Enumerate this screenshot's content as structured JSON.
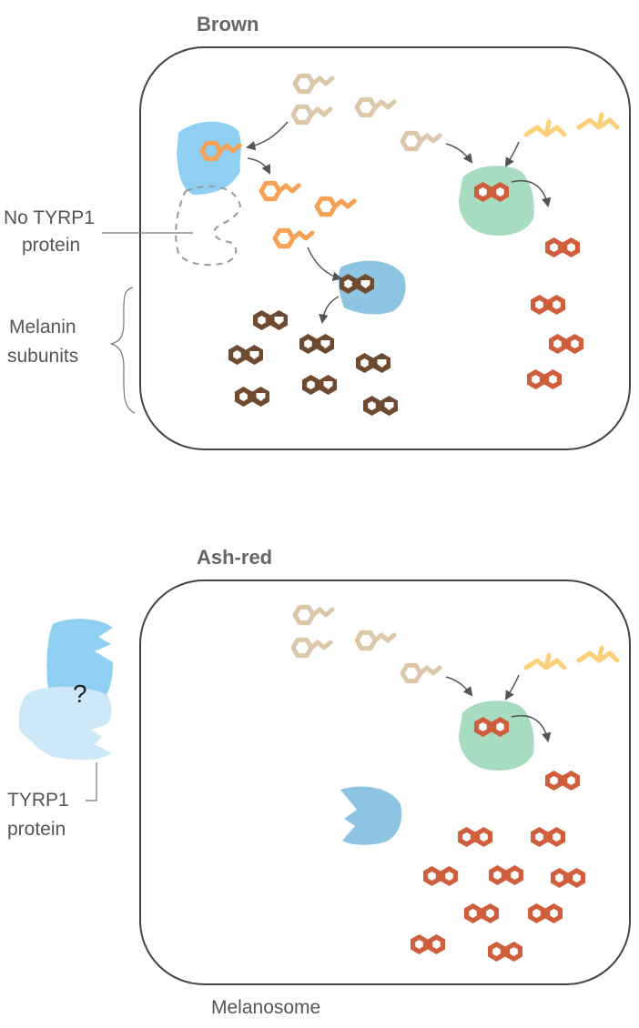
{
  "panels": {
    "brown": {
      "title": "Brown",
      "label_no_tyrp1": "No TYRP1",
      "label_no_tyrp1_line2": "protein",
      "label_melanin": "Melanin",
      "label_melanin_line2": "subunits"
    },
    "ash_red": {
      "title": "Ash-red",
      "question_mark": "?",
      "label_tyrp1": "TYRP1",
      "label_tyrp1_line2": "protein",
      "caption": "Melanosome"
    }
  },
  "colors": {
    "precursor_tan": "#dcc7ab",
    "precursor_yellow": "#fbd07a",
    "dopaquinone_orange": "#f6a155",
    "eumelanin_brown": "#6d4a30",
    "pheomelanin_red": "#cf5e3d",
    "tyrosinase_green": "#a8dcc1",
    "enzyme_blue": "#8fd0f2",
    "enzyme_steel_blue": "#8cc4e2",
    "tyrp1_light_blue": "#cde8f7",
    "outline": "#444444",
    "arrow": "#555555"
  }
}
